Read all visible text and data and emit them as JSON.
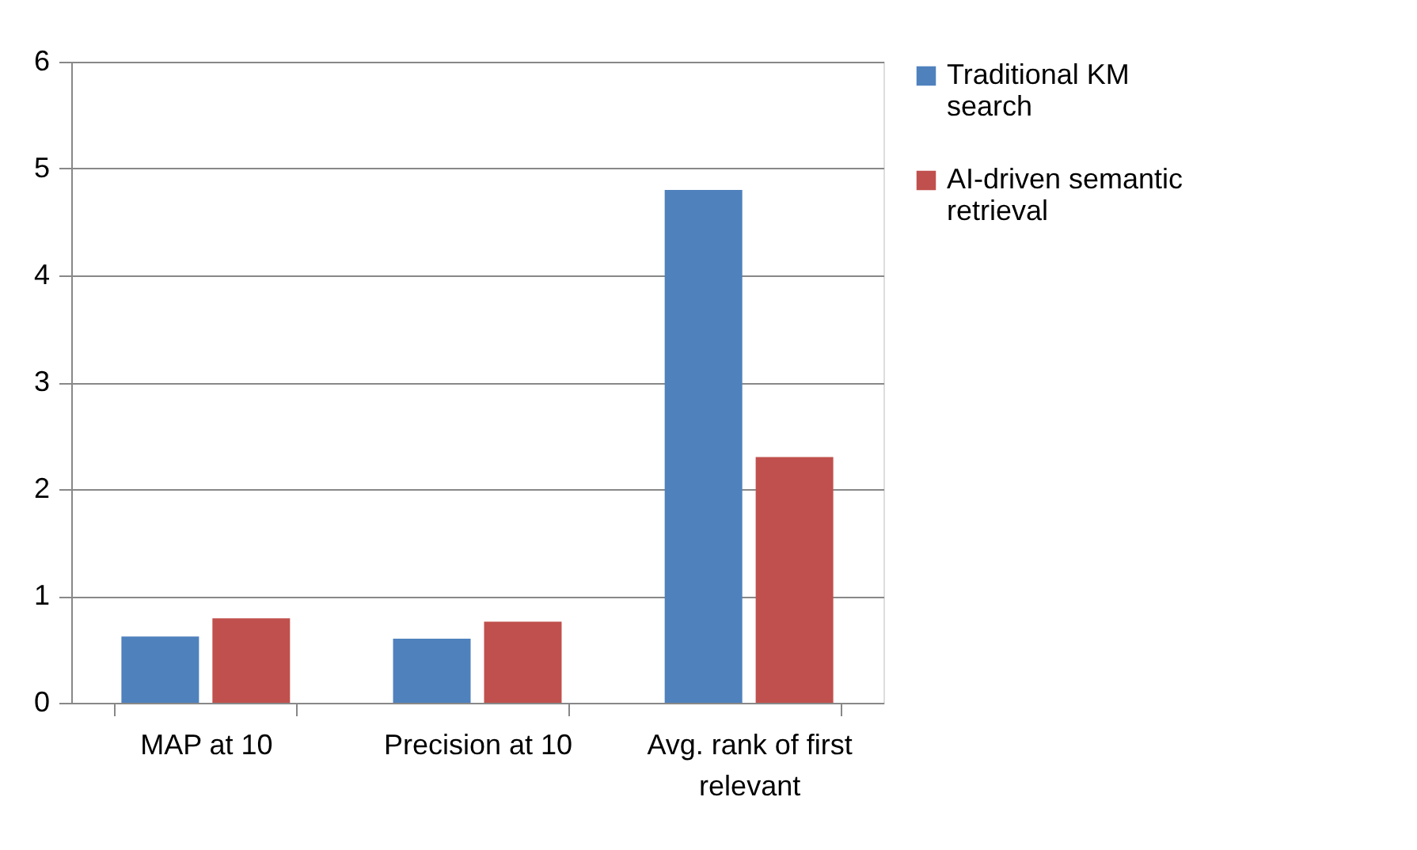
{
  "chart_data": {
    "type": "bar",
    "categories": [
      "MAP at 10",
      "Precision at 10",
      "Avg. rank of first relevant"
    ],
    "series": [
      {
        "name": "Traditional KM search",
        "color": "#4f81bd",
        "values": [
          0.62,
          0.6,
          4.8
        ]
      },
      {
        "name": "AI-driven semantic retrieval",
        "color": "#c0504d",
        "values": [
          0.79,
          0.76,
          2.3
        ]
      }
    ],
    "ylim": [
      0,
      6
    ],
    "yticks": [
      0,
      1,
      2,
      3,
      4,
      5,
      6
    ],
    "grid": "y",
    "legend": "right"
  }
}
